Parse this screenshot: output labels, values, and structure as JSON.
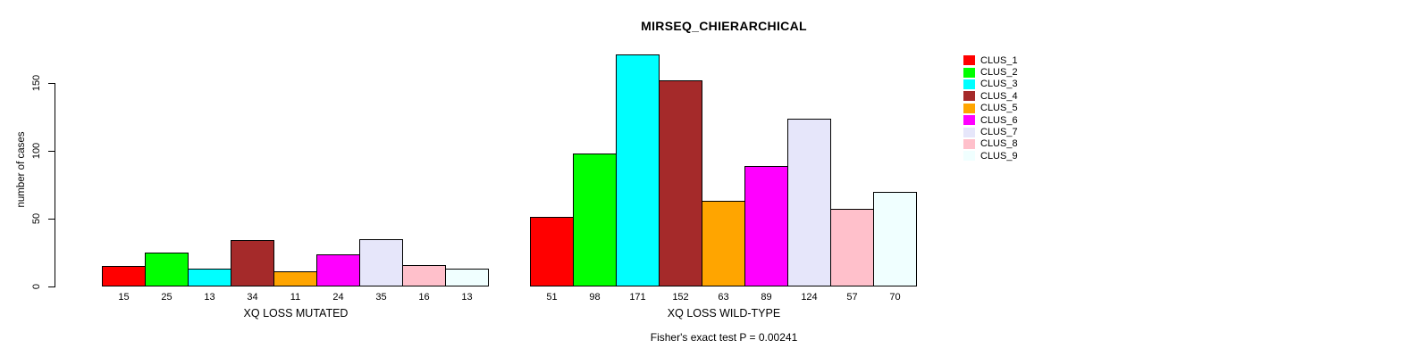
{
  "chart_data": {
    "type": "bar",
    "title": "MIRSEQ_CHIERARCHICAL",
    "ylabel": "number of cases",
    "yticks": [
      0,
      50,
      100,
      150
    ],
    "ylim": [
      0,
      175
    ],
    "grid": false,
    "legend_position": "right",
    "series_labels": [
      "CLUS_1",
      "CLUS_2",
      "CLUS_3",
      "CLUS_4",
      "CLUS_5",
      "CLUS_6",
      "CLUS_7",
      "CLUS_8",
      "CLUS_9"
    ],
    "colors": [
      "#FF0000",
      "#00FF00",
      "#00FFFF",
      "#A52A2A",
      "#FFA500",
      "#FF00FF",
      "#E6E6FA",
      "#FFC0CB",
      "#F0FFFF"
    ],
    "groups": [
      {
        "label": "XQ LOSS MUTATED",
        "values": [
          15,
          25,
          13,
          34,
          11,
          24,
          35,
          16,
          13
        ]
      },
      {
        "label": "XQ LOSS WILD-TYPE",
        "values": [
          51,
          98,
          171,
          152,
          63,
          89,
          124,
          57,
          70
        ]
      }
    ],
    "bar_value_labels_shown": true,
    "annotation": "Fisher's exact test P = 0.00241",
    "axis_color": "#000000",
    "bar_border_color": "#000000",
    "background_color": "#FFFFFF"
  }
}
